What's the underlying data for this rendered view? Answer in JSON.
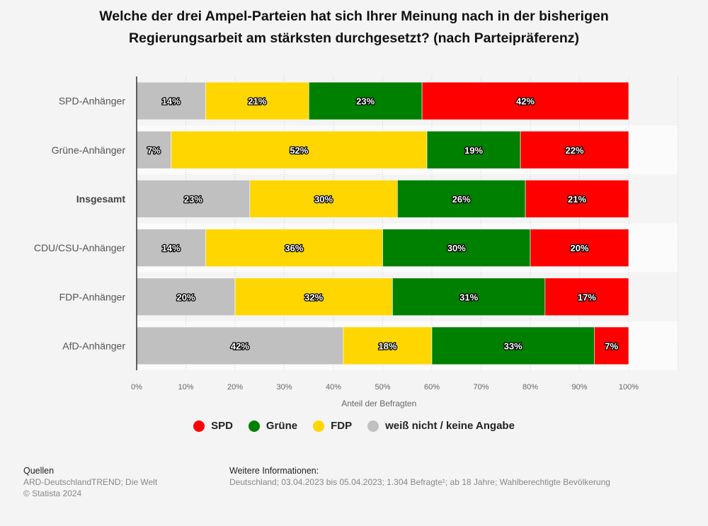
{
  "title_line1": "Welche der drei Ampel-Parteien hat sich Ihrer Meinung nach in der bisherigen",
  "title_line2": "Regierungsarbeit am stärksten durchgesetzt? (nach Parteipräferenz)",
  "chart_data": {
    "type": "bar",
    "orientation": "horizontal",
    "stacked": true,
    "title": "Welche der drei Ampel-Parteien hat sich Ihrer Meinung nach in der bisherigen Regierungsarbeit am stärksten durchgesetzt? (nach Parteipräferenz)",
    "categories": [
      "SPD-Anhänger",
      "Grüne-Anhänger",
      "Insgesamt",
      "CDU/CSU-Anhänger",
      "FDP-Anhänger",
      "AfD-Anhänger"
    ],
    "bold_category": "Insgesamt",
    "series": [
      {
        "name": "weiß nicht / keine Angabe",
        "color": "#c0c0c0",
        "values": [
          14,
          7,
          23,
          14,
          20,
          42
        ]
      },
      {
        "name": "FDP",
        "color": "#ffd600",
        "values": [
          21,
          52,
          30,
          36,
          32,
          18
        ]
      },
      {
        "name": "Grüne",
        "color": "#008000",
        "values": [
          23,
          19,
          26,
          30,
          31,
          33
        ]
      },
      {
        "name": "SPD",
        "color": "#ff0000",
        "values": [
          42,
          22,
          21,
          20,
          17,
          7
        ]
      }
    ],
    "xlabel": "Anteil der Befragten",
    "xlim": [
      0,
      110
    ],
    "xticks": [
      0,
      10,
      20,
      30,
      40,
      50,
      60,
      70,
      80,
      90,
      100
    ],
    "xtick_labels": [
      "0%",
      "10%",
      "20%",
      "30%",
      "40%",
      "50%",
      "60%",
      "70%",
      "80%",
      "90%",
      "100%"
    ],
    "value_suffix": "%",
    "grid": true
  },
  "legend": [
    {
      "label": "SPD",
      "color": "#ff0000"
    },
    {
      "label": "Grüne",
      "color": "#008000"
    },
    {
      "label": "FDP",
      "color": "#ffd600"
    },
    {
      "label": "weiß nicht / keine Angabe",
      "color": "#c0c0c0"
    }
  ],
  "footer": {
    "sources_heading": "Quellen",
    "sources_line1": "ARD-DeutschlandTREND; Die Welt",
    "sources_line2": "© Statista 2024",
    "info_heading": "Weitere Informationen:",
    "info_line1": "Deutschland; 03.04.2023 bis 05.04.2023; 1.304 Befragte¹; ab 18 Jahre; Wahlberechtigte Bevölkerung"
  }
}
